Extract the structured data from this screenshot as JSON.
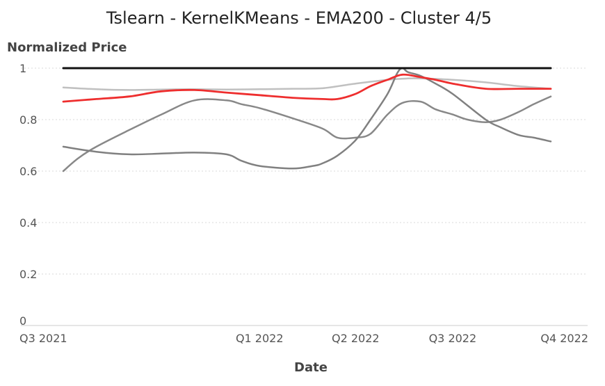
{
  "chart_data": {
    "type": "line",
    "title": "Tslearn - KernelKMeans - EMA200 - Cluster 4/5",
    "xlabel": "Date",
    "ylabel": "Normalized Price",
    "x_range": [
      "2021-07-01",
      "2022-10-01"
    ],
    "ylim": [
      0,
      1
    ],
    "grid": true,
    "legend": "none",
    "x_ticks": [
      {
        "date": "2021-07-01",
        "label": "Q3 2021"
      },
      {
        "date": "2022-01-01",
        "label": "Q1 2022"
      },
      {
        "date": "2022-04-01",
        "label": "Q2 2022"
      },
      {
        "date": "2022-07-01",
        "label": "Q3 2022"
      },
      {
        "date": "2022-10-01",
        "label": "Q4 2022"
      }
    ],
    "y_ticks": [
      {
        "value": 0,
        "label": "0"
      },
      {
        "value": 0.2,
        "label": "0.2"
      },
      {
        "value": 0.4,
        "label": "0.4"
      },
      {
        "value": 0.6,
        "label": "0.6"
      },
      {
        "value": 0.8,
        "label": "0.8"
      },
      {
        "value": 1,
        "label": "1"
      }
    ],
    "series": [
      {
        "color": "#c0c0c0",
        "width": 2.5,
        "x": [
          "2021-07-01",
          "2021-08-01",
          "2021-09-01",
          "2021-10-01",
          "2021-11-01",
          "2021-12-01",
          "2022-01-01",
          "2022-02-01",
          "2022-03-01",
          "2022-04-01",
          "2022-05-01",
          "2022-05-20",
          "2022-06-01",
          "2022-07-01",
          "2022-08-01",
          "2022-09-01",
          "2022-10-01"
        ],
        "values": [
          0.925,
          0.918,
          0.915,
          0.917,
          0.918,
          0.917,
          0.918,
          0.92,
          0.922,
          0.94,
          0.955,
          0.96,
          0.96,
          0.955,
          0.945,
          0.93,
          0.92
        ]
      },
      {
        "color": "#888888",
        "width": 2.5,
        "x": [
          "2021-07-01",
          "2021-07-15",
          "2021-08-01",
          "2021-09-01",
          "2021-10-01",
          "2021-11-01",
          "2021-12-01",
          "2021-12-15",
          "2022-01-01",
          "2022-02-01",
          "2022-03-01",
          "2022-03-15",
          "2022-04-01",
          "2022-04-15",
          "2022-05-01",
          "2022-05-15",
          "2022-06-01",
          "2022-06-15",
          "2022-07-01",
          "2022-07-15",
          "2022-08-01",
          "2022-08-15",
          "2022-09-01",
          "2022-09-15",
          "2022-10-01"
        ],
        "values": [
          0.6,
          0.65,
          0.695,
          0.76,
          0.82,
          0.875,
          0.875,
          0.86,
          0.845,
          0.805,
          0.765,
          0.73,
          0.73,
          0.745,
          0.82,
          0.865,
          0.87,
          0.84,
          0.82,
          0.8,
          0.79,
          0.8,
          0.83,
          0.86,
          0.89
        ]
      },
      {
        "color": "#808080",
        "width": 2.5,
        "x": [
          "2021-07-01",
          "2021-08-01",
          "2021-09-01",
          "2021-10-01",
          "2021-11-01",
          "2021-12-01",
          "2021-12-15",
          "2022-01-01",
          "2022-02-01",
          "2022-02-20",
          "2022-03-01",
          "2022-03-15",
          "2022-04-01",
          "2022-04-15",
          "2022-05-01",
          "2022-05-10",
          "2022-05-15",
          "2022-05-20",
          "2022-06-01",
          "2022-06-15",
          "2022-07-01",
          "2022-08-01",
          "2022-08-15",
          "2022-09-01",
          "2022-09-15",
          "2022-10-01"
        ],
        "values": [
          0.695,
          0.675,
          0.665,
          0.668,
          0.672,
          0.665,
          0.64,
          0.62,
          0.61,
          0.62,
          0.63,
          0.66,
          0.72,
          0.8,
          0.9,
          0.98,
          1.0,
          0.985,
          0.97,
          0.94,
          0.9,
          0.8,
          0.77,
          0.74,
          0.73,
          0.715
        ]
      },
      {
        "color": "#ee2e2e",
        "width": 2.8,
        "x": [
          "2021-07-01",
          "2021-08-01",
          "2021-09-01",
          "2021-10-01",
          "2021-11-01",
          "2021-12-01",
          "2022-01-01",
          "2022-02-01",
          "2022-03-01",
          "2022-03-15",
          "2022-04-01",
          "2022-04-15",
          "2022-05-01",
          "2022-05-15",
          "2022-06-01",
          "2022-06-15",
          "2022-07-01",
          "2022-08-01",
          "2022-09-01",
          "2022-10-01"
        ],
        "values": [
          0.87,
          0.88,
          0.89,
          0.91,
          0.915,
          0.905,
          0.895,
          0.885,
          0.88,
          0.88,
          0.9,
          0.93,
          0.955,
          0.975,
          0.965,
          0.955,
          0.94,
          0.92,
          0.92,
          0.92
        ]
      },
      {
        "color": "#111111",
        "width": 3,
        "x": [
          "2021-07-01",
          "2022-10-01"
        ],
        "values": [
          1.0,
          1.0
        ]
      }
    ]
  }
}
